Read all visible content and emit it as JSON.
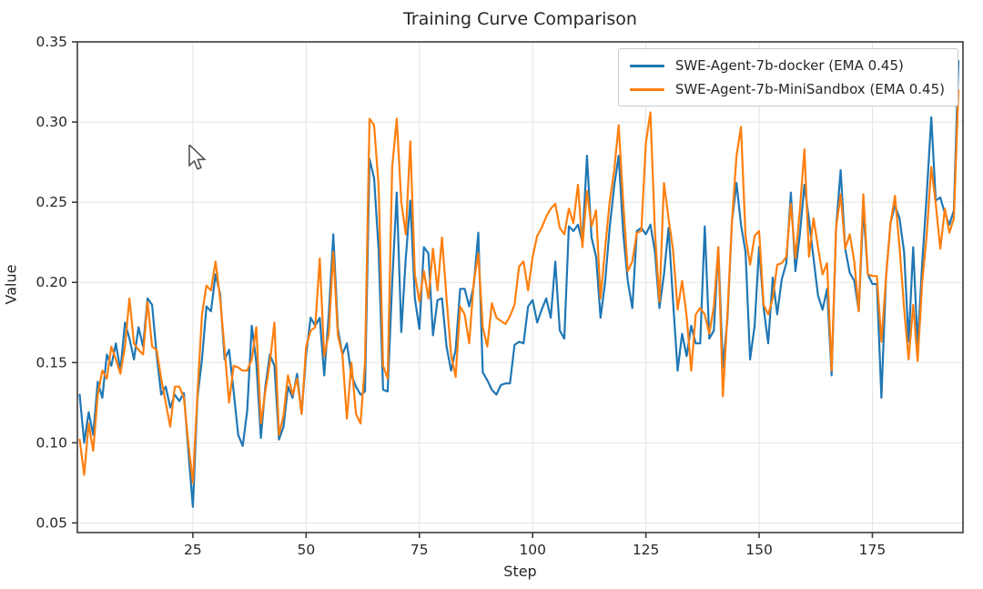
{
  "chart_data": {
    "type": "line",
    "title": "Training Curve Comparison",
    "xlabel": "Step",
    "ylabel": "Value",
    "x_ticks": [
      25,
      50,
      75,
      100,
      125,
      150,
      175
    ],
    "y_ticks": [
      "0.05",
      "0.10",
      "0.15",
      "0.20",
      "0.25",
      "0.30",
      "0.35"
    ],
    "y_tick_values": [
      0.05,
      0.1,
      0.15,
      0.2,
      0.25,
      0.3,
      0.35
    ],
    "xlim": [
      -0.5,
      195
    ],
    "ylim": [
      0.044,
      0.35
    ],
    "grid": true,
    "legend_position": "upper right",
    "colors": {
      "grid": "#e3e3e3",
      "spine": "#3c3c3c",
      "text": "#262626"
    },
    "x_start": 0,
    "series": [
      {
        "name": "SWE-Agent-7b-docker (EMA 0.45)",
        "color": "#1f77b4",
        "values": [
          0.13,
          0.1,
          0.119,
          0.105,
          0.138,
          0.128,
          0.155,
          0.148,
          0.162,
          0.145,
          0.175,
          0.165,
          0.152,
          0.172,
          0.16,
          0.19,
          0.186,
          0.155,
          0.13,
          0.135,
          0.122,
          0.13,
          0.126,
          0.131,
          0.095,
          0.06,
          0.128,
          0.152,
          0.185,
          0.182,
          0.205,
          0.193,
          0.152,
          0.158,
          0.132,
          0.105,
          0.098,
          0.12,
          0.173,
          0.15,
          0.103,
          0.135,
          0.155,
          0.148,
          0.102,
          0.11,
          0.135,
          0.128,
          0.143,
          0.118,
          0.155,
          0.178,
          0.173,
          0.178,
          0.142,
          0.18,
          0.23,
          0.171,
          0.155,
          0.162,
          0.142,
          0.135,
          0.13,
          0.132,
          0.277,
          0.265,
          0.22,
          0.133,
          0.132,
          0.2,
          0.256,
          0.169,
          0.215,
          0.251,
          0.19,
          0.171,
          0.222,
          0.218,
          0.167,
          0.189,
          0.19,
          0.16,
          0.145,
          0.158,
          0.196,
          0.196,
          0.185,
          0.198,
          0.231,
          0.144,
          0.139,
          0.133,
          0.13,
          0.136,
          0.137,
          0.137,
          0.161,
          0.163,
          0.162,
          0.185,
          0.189,
          0.175,
          0.183,
          0.19,
          0.178,
          0.213,
          0.17,
          0.165,
          0.235,
          0.232,
          0.236,
          0.225,
          0.279,
          0.228,
          0.216,
          0.178,
          0.2,
          0.234,
          0.26,
          0.279,
          0.231,
          0.201,
          0.184,
          0.232,
          0.234,
          0.23,
          0.236,
          0.219,
          0.184,
          0.205,
          0.234,
          0.188,
          0.145,
          0.168,
          0.154,
          0.173,
          0.162,
          0.162,
          0.235,
          0.165,
          0.17,
          0.222,
          0.147,
          0.177,
          0.238,
          0.262,
          0.236,
          0.219,
          0.152,
          0.173,
          0.222,
          0.184,
          0.162,
          0.203,
          0.18,
          0.202,
          0.212,
          0.256,
          0.207,
          0.23,
          0.261,
          0.239,
          0.215,
          0.192,
          0.183,
          0.196,
          0.142,
          0.234,
          0.27,
          0.221,
          0.206,
          0.201,
          0.182,
          0.246,
          0.205,
          0.199,
          0.199,
          0.128,
          0.203,
          0.237,
          0.248,
          0.24,
          0.219,
          0.163,
          0.222,
          0.161,
          0.212,
          0.255,
          0.303,
          0.251,
          0.253,
          0.243,
          0.236,
          0.245,
          0.338
        ]
      },
      {
        "name": "SWE-Agent-7b-MiniSandbox (EMA 0.45)",
        "color": "#ff7f0e",
        "values": [
          0.102,
          0.08,
          0.112,
          0.095,
          0.13,
          0.145,
          0.14,
          0.16,
          0.152,
          0.143,
          0.16,
          0.19,
          0.162,
          0.158,
          0.155,
          0.188,
          0.16,
          0.158,
          0.14,
          0.125,
          0.11,
          0.135,
          0.135,
          0.128,
          0.1,
          0.075,
          0.13,
          0.18,
          0.198,
          0.195,
          0.213,
          0.19,
          0.158,
          0.125,
          0.148,
          0.147,
          0.145,
          0.145,
          0.152,
          0.172,
          0.112,
          0.132,
          0.15,
          0.175,
          0.105,
          0.117,
          0.142,
          0.13,
          0.14,
          0.118,
          0.16,
          0.17,
          0.172,
          0.215,
          0.154,
          0.168,
          0.219,
          0.167,
          0.155,
          0.115,
          0.15,
          0.118,
          0.112,
          0.15,
          0.302,
          0.298,
          0.26,
          0.148,
          0.14,
          0.272,
          0.302,
          0.25,
          0.23,
          0.288,
          0.205,
          0.188,
          0.207,
          0.19,
          0.221,
          0.195,
          0.228,
          0.19,
          0.155,
          0.141,
          0.185,
          0.18,
          0.162,
          0.2,
          0.218,
          0.172,
          0.16,
          0.187,
          0.178,
          0.176,
          0.174,
          0.179,
          0.186,
          0.21,
          0.213,
          0.195,
          0.216,
          0.229,
          0.234,
          0.241,
          0.246,
          0.249,
          0.234,
          0.23,
          0.246,
          0.237,
          0.261,
          0.222,
          0.257,
          0.235,
          0.245,
          0.19,
          0.221,
          0.25,
          0.27,
          0.298,
          0.25,
          0.207,
          0.213,
          0.231,
          0.232,
          0.287,
          0.306,
          0.231,
          0.188,
          0.262,
          0.24,
          0.22,
          0.183,
          0.201,
          0.179,
          0.145,
          0.18,
          0.184,
          0.18,
          0.168,
          0.185,
          0.222,
          0.129,
          0.18,
          0.238,
          0.279,
          0.297,
          0.229,
          0.211,
          0.229,
          0.232,
          0.186,
          0.18,
          0.19,
          0.211,
          0.212,
          0.216,
          0.249,
          0.215,
          0.245,
          0.283,
          0.216,
          0.24,
          0.222,
          0.205,
          0.212,
          0.145,
          0.234,
          0.255,
          0.221,
          0.23,
          0.213,
          0.182,
          0.255,
          0.205,
          0.204,
          0.204,
          0.163,
          0.203,
          0.237,
          0.254,
          0.222,
          0.184,
          0.152,
          0.186,
          0.151,
          0.2,
          0.23,
          0.272,
          0.249,
          0.221,
          0.246,
          0.231,
          0.24,
          0.32
        ]
      }
    ]
  }
}
